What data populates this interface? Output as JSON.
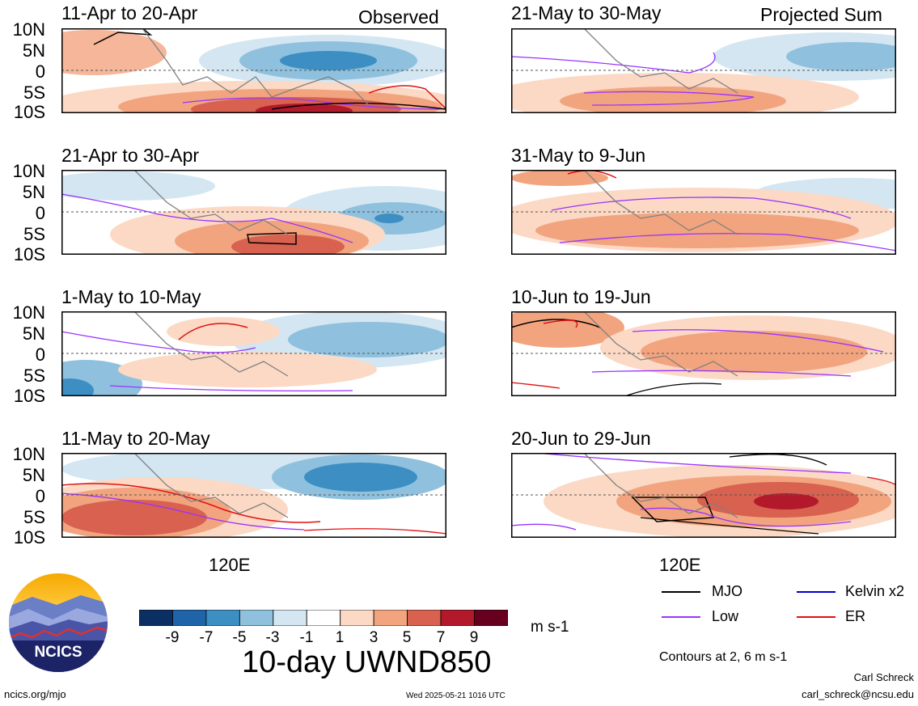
{
  "labels": {
    "observed": "Observed",
    "projected": "Projected Sum",
    "lon_tick": "120E",
    "units": "m s-1",
    "variable_title": "10-day UWND850",
    "contour_note": "Contours at 2, 6 m s-1",
    "author": "Carl Schreck",
    "email": "carl_schreck@ncsu.edu",
    "website": "ncics.org/mjo",
    "timestamp": "Wed 2025-05-21 1016 UTC",
    "logo_text": "NCICS"
  },
  "lat_ticks": [
    "10N",
    "5N",
    "0",
    "5S",
    "10S"
  ],
  "panels": [
    {
      "title": "11-Apr to 20-Apr",
      "type": "observed"
    },
    {
      "title": "21-Apr to 30-Apr",
      "type": "observed"
    },
    {
      "title": "1-May to 10-May",
      "type": "observed"
    },
    {
      "title": "11-May to 20-May",
      "type": "observed"
    },
    {
      "title": "21-May to 30-May",
      "type": "projected"
    },
    {
      "title": "31-May to 9-Jun",
      "type": "projected"
    },
    {
      "title": "10-Jun to 19-Jun",
      "type": "projected"
    },
    {
      "title": "20-Jun to 29-Jun",
      "type": "projected"
    }
  ],
  "colorbar": {
    "ticks": [
      "-9",
      "-7",
      "-5",
      "-3",
      "-1",
      "1",
      "3",
      "5",
      "7",
      "9"
    ],
    "colors": [
      "#0c2f63",
      "#1f63a8",
      "#3c8ec3",
      "#8fc1de",
      "#d3e6f2",
      "#ffffff",
      "#fbd9c5",
      "#f2a47f",
      "#d8614f",
      "#b21a2b",
      "#67001f"
    ]
  },
  "legend": [
    {
      "label": "MJO",
      "color": "#000000"
    },
    {
      "label": "Kelvin x2",
      "color": "#0000cc"
    },
    {
      "label": "Low",
      "color": "#9933ff"
    },
    {
      "label": "ER",
      "color": "#e01010"
    }
  ]
}
